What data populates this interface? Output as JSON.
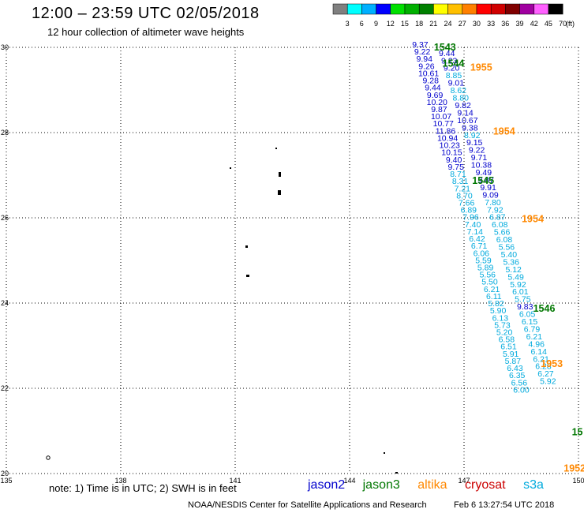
{
  "header": {
    "title": "12:00 – 23:59 UTC 02/05/2018",
    "subtitle": "12 hour collection of altimeter wave heights"
  },
  "colorbar": {
    "unit": "(ft)",
    "ticks": [
      "3",
      "6",
      "9",
      "12",
      "15",
      "18",
      "21",
      "24",
      "27",
      "30",
      "33",
      "36",
      "39",
      "42",
      "45",
      "70"
    ],
    "colors": [
      "#808080",
      "#00ffff",
      "#00b0ff",
      "#0000ff",
      "#00e000",
      "#00b000",
      "#008000",
      "#ffff00",
      "#ffc000",
      "#ff8000",
      "#ff0000",
      "#d00000",
      "#800000",
      "#a000a0",
      "#ff60ff",
      "#000000"
    ]
  },
  "axes": {
    "x_ticks": [
      "135",
      "138",
      "141",
      "144",
      "147",
      "150"
    ],
    "y_ticks": [
      "30",
      "28",
      "26",
      "24",
      "22",
      "20"
    ]
  },
  "satellite_colors": {
    "jason2": "#0000cc",
    "jason3": "#007700",
    "altika": "#ff8800",
    "cryosat": "#cc0000",
    "s3a": "#00aadd"
  },
  "time_labels": [
    {
      "text": "1543",
      "sat": "jason3",
      "lon": 146.5,
      "lat": 29.93
    },
    {
      "text": "1544",
      "sat": "jason3",
      "lon": 146.72,
      "lat": 29.55
    },
    {
      "text": "1955",
      "sat": "altika",
      "lon": 147.45,
      "lat": 29.45
    },
    {
      "text": "1954",
      "sat": "altika",
      "lon": 148.05,
      "lat": 27.95
    },
    {
      "text": "1545",
      "sat": "jason3",
      "lon": 147.5,
      "lat": 26.8
    },
    {
      "text": "1954",
      "sat": "altika",
      "lon": 148.8,
      "lat": 25.9
    },
    {
      "text": "1546",
      "sat": "jason3",
      "lon": 149.1,
      "lat": 23.8
    },
    {
      "text": "1953",
      "sat": "altika",
      "lon": 149.3,
      "lat": 22.5
    },
    {
      "text": "15",
      "sat": "jason3",
      "lon": 149.97,
      "lat": 20.9
    },
    {
      "text": "1952",
      "sat": "altika",
      "lon": 149.9,
      "lat": 20.05
    }
  ],
  "tracks": [
    {
      "name": "jason2",
      "sat": "jason2",
      "lon_top": 145.85,
      "lat_top": 30.0,
      "lon_bottom": 148.5,
      "lat_bottom": 21.9,
      "values": [
        "9.37",
        "9.22",
        "9.94",
        "9.26",
        "10.61",
        "9.28",
        "9.44",
        "9.69",
        "10.20",
        "9.87",
        "10.07",
        "10.77",
        "11.86",
        "10.94",
        "10.23",
        "10.15",
        "9.40",
        "9.75",
        "8.71",
        "8.31",
        "7.21",
        "8.70",
        "7.66",
        "6.89",
        "7.96",
        "7.40",
        "7.14",
        "6.42",
        "6.71",
        "6.06",
        "5.59",
        "5.89",
        "5.56",
        "5.50",
        "6.21",
        "6.11",
        "5.82",
        "5.90",
        "6.13",
        "5.73",
        "5.20",
        "6.58",
        "6.51",
        "5.91",
        "5.87",
        "6.43",
        "6.35",
        "6.56",
        "6.00"
      ]
    },
    {
      "name": "s3a-1",
      "sat": "jason2",
      "lon_top": 146.55,
      "lat_top": 29.8,
      "lon_bottom": 149.2,
      "lat_bottom": 22.1,
      "values": [
        "9.44",
        "9.23",
        "9.20",
        "8.85",
        "9.01",
        "8.62",
        "8.80",
        "9.82",
        "9.14",
        "10.67",
        "9.38",
        "8.92",
        "9.15",
        "9.22",
        "9.71",
        "10.38",
        "9.49",
        "9.87",
        "9.91",
        "9.09",
        "7.80",
        "7.92",
        "6.87",
        "6.08",
        "5.66",
        "6.08",
        "5.56",
        "5.40",
        "5.36",
        "5.12",
        "5.49",
        "5.92",
        "6.01",
        "5.75",
        "9.83",
        "6.05",
        "6.15",
        "6.79",
        "6.21",
        "4.96",
        "6.14",
        "6.21",
        "6.28",
        "6.27",
        "5.92"
      ]
    }
  ],
  "note": "note: 1) Time is in UTC; 2) SWH is in feet",
  "legend": [
    "jason2",
    "jason3",
    "altika",
    "cryosat",
    "s3a"
  ],
  "footer": "NOAA/NESDIS Center for Satellite Applications and Research",
  "footer_timestamp": "Feb  6 13:27:54 UTC 2018"
}
